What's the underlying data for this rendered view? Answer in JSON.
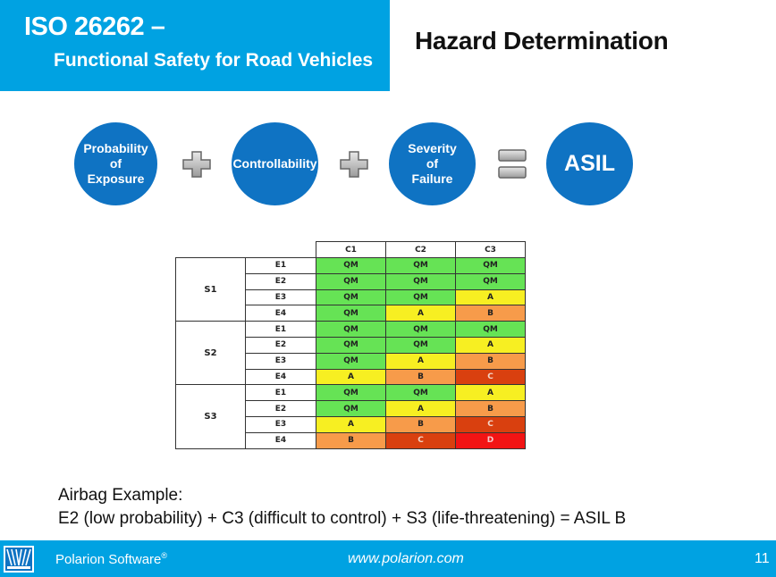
{
  "header": {
    "title_line1": "ISO 26262 –",
    "title_line2": "Functional Safety for Road Vehicles",
    "heading": "Hazard Determination"
  },
  "formula": {
    "exposure": [
      "Probability",
      "of",
      "Exposure"
    ],
    "controllability": "Controllability",
    "severity": [
      "Severity",
      "of",
      "Failure"
    ],
    "result": "ASIL",
    "plus_icon": "plus-icon",
    "equals_icon": "equals-icon"
  },
  "asil_table": {
    "columns": [
      "C1",
      "C2",
      "C3"
    ],
    "groups": [
      {
        "severity": "S1",
        "rows": [
          {
            "exposure": "E1",
            "values": [
              "QM",
              "QM",
              "QM"
            ]
          },
          {
            "exposure": "E2",
            "values": [
              "QM",
              "QM",
              "QM"
            ]
          },
          {
            "exposure": "E3",
            "values": [
              "QM",
              "QM",
              "A"
            ]
          },
          {
            "exposure": "E4",
            "values": [
              "QM",
              "A",
              "B"
            ]
          }
        ]
      },
      {
        "severity": "S2",
        "rows": [
          {
            "exposure": "E1",
            "values": [
              "QM",
              "QM",
              "QM"
            ]
          },
          {
            "exposure": "E2",
            "values": [
              "QM",
              "QM",
              "A"
            ]
          },
          {
            "exposure": "E3",
            "values": [
              "QM",
              "A",
              "B"
            ]
          },
          {
            "exposure": "E4",
            "values": [
              "A",
              "B",
              "C"
            ]
          }
        ]
      },
      {
        "severity": "S3",
        "rows": [
          {
            "exposure": "E1",
            "values": [
              "QM",
              "QM",
              "A"
            ]
          },
          {
            "exposure": "E2",
            "values": [
              "QM",
              "A",
              "B"
            ]
          },
          {
            "exposure": "E3",
            "values": [
              "A",
              "B",
              "C"
            ]
          },
          {
            "exposure": "E4",
            "values": [
              "B",
              "C",
              "D"
            ]
          }
        ]
      }
    ],
    "colors": {
      "QM": "#66e355",
      "A": "#f7ef22",
      "B": "#f79b4a",
      "C": "#d9400f",
      "D": "#f21414"
    }
  },
  "example": {
    "label": "Airbag Example:",
    "text": "E2 (low probability) + C3 (difficult to control) + S3 (life-threatening) = ASIL B"
  },
  "footer": {
    "brand": "Polarion Software",
    "registered": "®",
    "url": "www.polarion.com",
    "page_number": "11",
    "logo_icon": "polarion-logo-icon"
  }
}
